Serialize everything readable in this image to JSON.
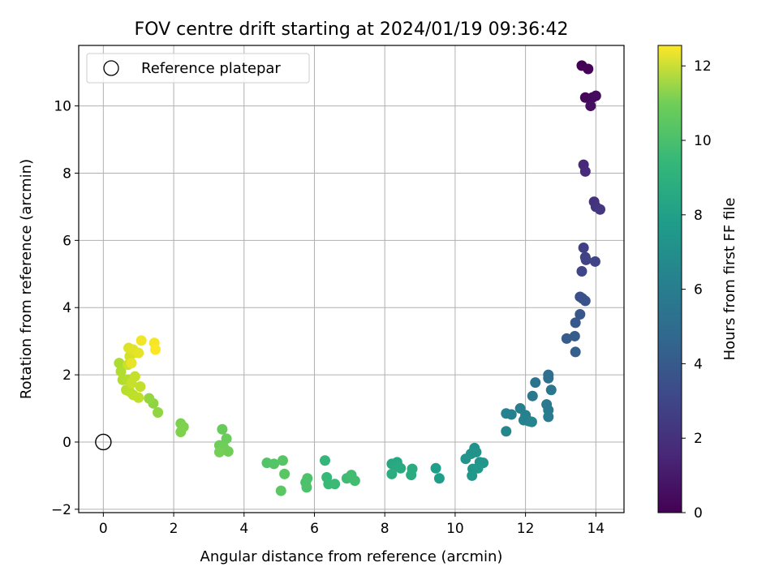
{
  "chart_data": {
    "type": "scatter",
    "title": "FOV centre drift starting at 2024/01/19 09:36:42",
    "xlabel": "Angular distance from reference (arcmin)",
    "ylabel": "Rotation from reference (arcmin)",
    "xlim": [
      -0.7,
      14.8
    ],
    "ylim": [
      -2.1,
      11.8
    ],
    "xticks": [
      0,
      2,
      4,
      6,
      8,
      10,
      12,
      14
    ],
    "yticks": [
      -2,
      0,
      2,
      4,
      6,
      8,
      10
    ],
    "grid": true,
    "legend": {
      "placement": "top-left",
      "entries": [
        "Reference platepar"
      ]
    },
    "reference_point": {
      "name": "Reference platepar",
      "x": 0,
      "y": 0
    },
    "colorbar": {
      "label": "Hours from first FF file",
      "colormap": "viridis",
      "range": [
        0,
        12.55
      ],
      "ticks": [
        0,
        2,
        4,
        6,
        8,
        10,
        12
      ]
    },
    "series": [
      {
        "points": [
          [
            13.6,
            11.2,
            0.0
          ],
          [
            13.78,
            11.1,
            0.1
          ],
          [
            13.7,
            10.25,
            0.2
          ],
          [
            13.9,
            10.25,
            0.3
          ],
          [
            14.0,
            10.3,
            0.35
          ],
          [
            13.85,
            10.0,
            0.45
          ],
          [
            13.65,
            8.25,
            1.4
          ],
          [
            13.7,
            8.05,
            1.5
          ],
          [
            13.95,
            7.15,
            1.8
          ],
          [
            14.0,
            7.0,
            1.9
          ],
          [
            14.12,
            6.92,
            2.0
          ],
          [
            13.65,
            5.78,
            2.4
          ],
          [
            13.7,
            5.5,
            2.5
          ],
          [
            13.72,
            5.42,
            2.55
          ],
          [
            13.98,
            5.37,
            2.6
          ],
          [
            13.6,
            5.08,
            2.7
          ],
          [
            13.55,
            4.32,
            3.1
          ],
          [
            13.62,
            4.27,
            3.15
          ],
          [
            13.7,
            4.2,
            3.2
          ],
          [
            13.55,
            3.8,
            3.4
          ],
          [
            13.42,
            3.55,
            3.5
          ],
          [
            13.4,
            3.15,
            3.65
          ],
          [
            13.17,
            3.08,
            3.7
          ],
          [
            13.42,
            2.68,
            3.8
          ],
          [
            12.65,
            2.0,
            4.6
          ],
          [
            12.65,
            1.9,
            4.65
          ],
          [
            12.28,
            1.77,
            4.8
          ],
          [
            12.73,
            1.55,
            4.9
          ],
          [
            12.2,
            1.37,
            5.0
          ],
          [
            12.6,
            1.12,
            5.1
          ],
          [
            12.65,
            0.95,
            5.15
          ],
          [
            12.65,
            0.75,
            5.2
          ],
          [
            11.85,
            1.0,
            5.4
          ],
          [
            12.0,
            0.8,
            5.45
          ],
          [
            11.45,
            0.85,
            5.5
          ],
          [
            11.6,
            0.82,
            5.55
          ],
          [
            11.95,
            0.65,
            5.6
          ],
          [
            12.1,
            0.62,
            5.65
          ],
          [
            12.18,
            0.6,
            5.7
          ],
          [
            11.45,
            0.32,
            5.8
          ],
          [
            10.55,
            -0.18,
            6.3
          ],
          [
            10.6,
            -0.3,
            6.35
          ],
          [
            10.45,
            -0.35,
            6.4
          ],
          [
            10.3,
            -0.5,
            6.45
          ],
          [
            10.7,
            -0.6,
            6.5
          ],
          [
            10.8,
            -0.62,
            6.55
          ],
          [
            10.5,
            -0.8,
            6.6
          ],
          [
            10.65,
            -0.78,
            6.65
          ],
          [
            10.48,
            -1.0,
            6.7
          ],
          [
            9.45,
            -0.78,
            7.0
          ],
          [
            9.55,
            -1.08,
            7.05
          ],
          [
            8.2,
            -0.65,
            7.5
          ],
          [
            8.35,
            -0.6,
            7.55
          ],
          [
            8.3,
            -0.72,
            7.6
          ],
          [
            8.45,
            -0.78,
            7.65
          ],
          [
            8.78,
            -0.8,
            7.7
          ],
          [
            8.75,
            -0.98,
            7.75
          ],
          [
            8.2,
            -0.95,
            7.8
          ],
          [
            6.3,
            -0.55,
            8.3
          ],
          [
            6.35,
            -1.05,
            8.4
          ],
          [
            6.4,
            -1.25,
            8.5
          ],
          [
            6.58,
            -1.25,
            8.55
          ],
          [
            6.92,
            -1.08,
            8.6
          ],
          [
            7.05,
            -0.98,
            8.65
          ],
          [
            7.15,
            -1.15,
            8.7
          ],
          [
            4.65,
            -0.62,
            9.1
          ],
          [
            4.85,
            -0.65,
            9.15
          ],
          [
            5.1,
            -0.55,
            9.2
          ],
          [
            5.15,
            -0.95,
            9.25
          ],
          [
            5.05,
            -1.45,
            9.3
          ],
          [
            5.75,
            -1.2,
            8.9
          ],
          [
            5.8,
            -1.08,
            8.95
          ],
          [
            5.78,
            -1.35,
            9.0
          ],
          [
            3.38,
            0.38,
            9.6
          ],
          [
            3.5,
            0.1,
            9.65
          ],
          [
            3.3,
            -0.1,
            9.7
          ],
          [
            3.42,
            -0.15,
            9.75
          ],
          [
            3.55,
            -0.28,
            9.8
          ],
          [
            3.3,
            -0.3,
            9.85
          ],
          [
            2.2,
            0.55,
            10.0
          ],
          [
            2.28,
            0.45,
            10.05
          ],
          [
            2.2,
            0.3,
            10.1
          ],
          [
            1.42,
            1.15,
            10.4
          ],
          [
            1.55,
            0.88,
            10.45
          ],
          [
            1.3,
            1.3,
            10.5
          ],
          [
            0.45,
            2.35,
            11.0
          ],
          [
            0.5,
            2.1,
            11.05
          ],
          [
            0.55,
            1.85,
            11.1
          ],
          [
            0.7,
            1.85,
            11.15
          ],
          [
            0.65,
            1.55,
            11.2
          ],
          [
            0.75,
            1.5,
            11.25
          ],
          [
            0.85,
            1.4,
            11.3
          ],
          [
            1.0,
            1.32,
            11.35
          ],
          [
            1.05,
            1.65,
            11.4
          ],
          [
            0.9,
            1.95,
            11.45
          ],
          [
            0.8,
            1.75,
            11.5
          ],
          [
            0.7,
            2.3,
            11.6
          ],
          [
            0.75,
            2.55,
            11.7
          ],
          [
            0.85,
            2.65,
            11.8
          ],
          [
            0.72,
            2.8,
            11.9
          ],
          [
            0.85,
            2.75,
            12.0
          ],
          [
            1.0,
            2.65,
            12.1
          ],
          [
            0.8,
            2.35,
            12.15
          ],
          [
            1.08,
            3.02,
            12.3
          ],
          [
            1.45,
            2.95,
            12.4
          ],
          [
            1.48,
            2.75,
            12.5
          ]
        ]
      }
    ]
  }
}
